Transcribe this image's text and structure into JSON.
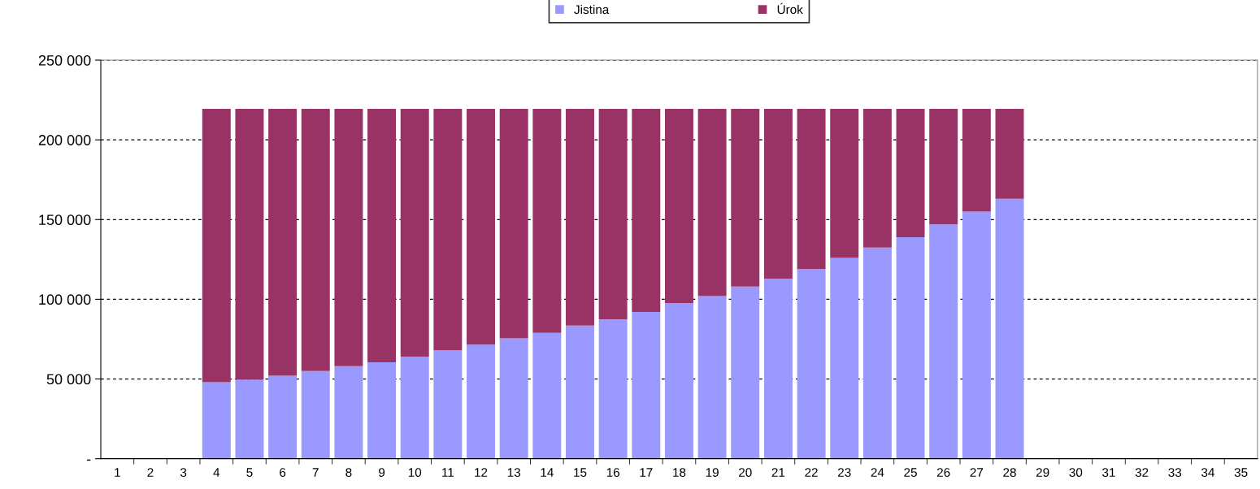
{
  "chart_data": {
    "type": "bar",
    "stacked": true,
    "categories": [
      "1",
      "2",
      "3",
      "4",
      "5",
      "6",
      "7",
      "8",
      "9",
      "10",
      "11",
      "12",
      "13",
      "14",
      "15",
      "16",
      "17",
      "18",
      "19",
      "20",
      "21",
      "22",
      "23",
      "24",
      "25",
      "26",
      "27",
      "28",
      "29",
      "30",
      "31",
      "32",
      "33",
      "34",
      "35"
    ],
    "series": [
      {
        "name": "Jistina",
        "color": "#9999ff",
        "values": [
          null,
          null,
          null,
          48000,
          49500,
          52000,
          55000,
          58000,
          60500,
          64000,
          68000,
          71500,
          75500,
          79000,
          83500,
          87500,
          92000,
          97500,
          102000,
          108000,
          113000,
          119000,
          126000,
          132500,
          139000,
          147000,
          155000,
          163000,
          null,
          null,
          null,
          null,
          null,
          null,
          null
        ]
      },
      {
        "name": "Úrok",
        "color": "#993366",
        "values": [
          null,
          null,
          null,
          171500,
          170000,
          167500,
          164500,
          161500,
          159000,
          155500,
          151500,
          148000,
          144000,
          140500,
          136000,
          132000,
          127500,
          122000,
          117500,
          111500,
          106500,
          100500,
          93500,
          87000,
          80500,
          72500,
          64500,
          56500,
          null,
          null,
          null,
          null,
          null,
          null,
          null
        ]
      }
    ],
    "ylim": [
      0,
      250000
    ],
    "yticks": [
      {
        "value": 0,
        "label": "-"
      },
      {
        "value": 50000,
        "label": "50 000"
      },
      {
        "value": 100000,
        "label": "100 000"
      },
      {
        "value": 150000,
        "label": "150 000"
      },
      {
        "value": 200000,
        "label": "200 000"
      },
      {
        "value": 250000,
        "label": "250 000"
      }
    ],
    "grid": "y",
    "legend": "top"
  }
}
